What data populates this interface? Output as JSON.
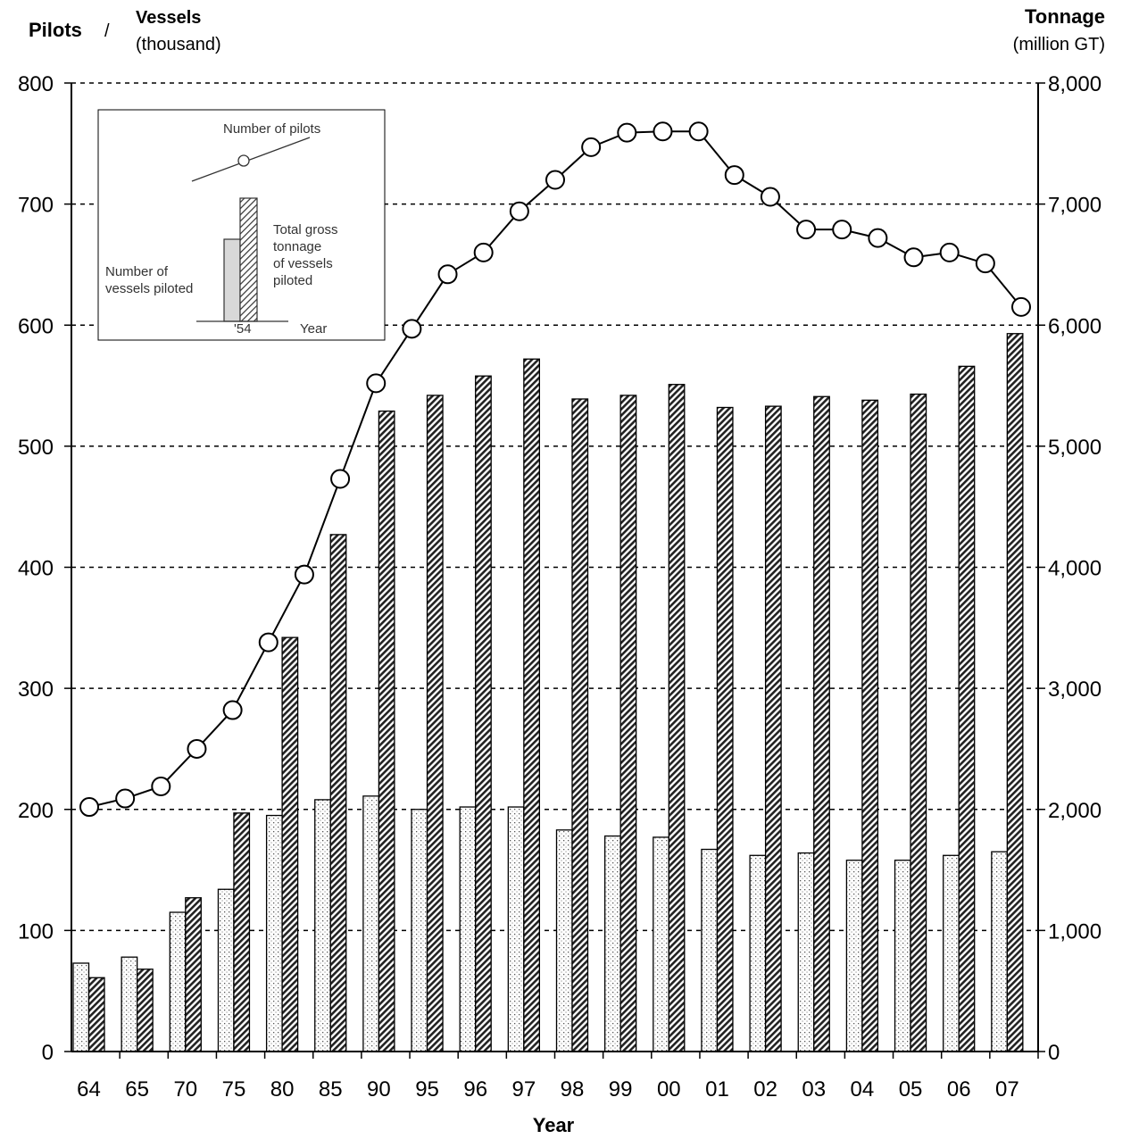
{
  "chart_data": {
    "type": "bar",
    "categories": [
      "64",
      "65",
      "70",
      "75",
      "80",
      "85",
      "90",
      "95",
      "96",
      "97",
      "98",
      "99",
      "00",
      "01",
      "02",
      "03",
      "04",
      "05",
      "06",
      "07"
    ],
    "series": [
      {
        "name": "Number of vessels piloted",
        "axis": "left",
        "style": "dotted",
        "values": [
          73,
          78,
          115,
          134,
          195,
          208,
          211,
          200,
          202,
          202,
          183,
          178,
          177,
          167,
          162,
          164,
          158,
          158,
          162,
          165
        ]
      },
      {
        "name": "Total gross tonnage of vessels piloted",
        "axis": "right",
        "style": "hatched",
        "values": [
          610,
          680,
          1270,
          1970,
          3420,
          4270,
          5290,
          5420,
          5580,
          5720,
          5390,
          5420,
          5510,
          5320,
          5330,
          5410,
          5380,
          5430,
          5660,
          5930
        ]
      },
      {
        "name": "Number of pilots",
        "axis": "left",
        "type": "line",
        "x": [
          1964,
          1966,
          1968,
          1970,
          1972,
          1974,
          1976,
          1978,
          1980,
          1982,
          1984,
          1986,
          1988,
          1990,
          1992,
          1994,
          1996,
          1998,
          2000,
          2002,
          2004,
          2006,
          2008,
          2010,
          2012,
          2014,
          2016
        ],
        "values": [
          202,
          209,
          219,
          250,
          282,
          338,
          394,
          473,
          552,
          597,
          642,
          660,
          694,
          720,
          747,
          759,
          760,
          760,
          724,
          706,
          679,
          679,
          672,
          656,
          660,
          651,
          615
        ]
      }
    ],
    "ylabel_left": {
      "main": "Pilots",
      "sep": "/",
      "sub_title": "Vessels",
      "sub_unit": "(thousand)"
    },
    "ylabel_right": {
      "title": "Tonnage",
      "unit": "(million GT)"
    },
    "xlabel": "Year",
    "ylim_left": [
      0,
      800
    ],
    "ylim_right": [
      0,
      8000
    ],
    "yticks_left": [
      "0",
      "100",
      "200",
      "300",
      "400",
      "500",
      "600",
      "700",
      "800"
    ],
    "yticks_right": [
      "0",
      "1,000",
      "2,000",
      "3,000",
      "4,000",
      "5,000",
      "6,000",
      "7,000",
      "8,000"
    ],
    "grid": "horizontal-dashed",
    "legend_position": "top-left",
    "legend": {
      "pilots": "Number of pilots",
      "vessels": "Number of vessels piloted",
      "tonnage": "Total gross tonnage of vessels piloted",
      "year_sample": "'54",
      "axis_label": "Year"
    }
  }
}
